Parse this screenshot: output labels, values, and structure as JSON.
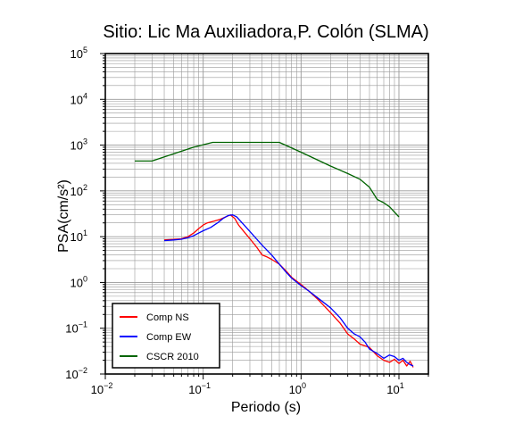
{
  "chart_data": {
    "type": "line",
    "title": "Sitio: Lic Ma Auxiliadora,P. Colón (SLMA)",
    "xlabel": "Periodo (s)",
    "ylabel": "PSA(cm/s²)",
    "xscale": "log",
    "yscale": "log",
    "xlim": [
      0.01,
      20
    ],
    "ylim": [
      0.01,
      100000
    ],
    "grid": true,
    "legend_position": "bottom-left",
    "x_ticks": [
      {
        "value": 0.01,
        "base": "10",
        "exp": "−2"
      },
      {
        "value": 0.1,
        "base": "10",
        "exp": "−1"
      },
      {
        "value": 1,
        "base": "10",
        "exp": "0"
      },
      {
        "value": 10,
        "base": "10",
        "exp": "1"
      }
    ],
    "y_ticks": [
      {
        "value": 0.01,
        "base": "10",
        "exp": "−2"
      },
      {
        "value": 0.1,
        "base": "10",
        "exp": "−1"
      },
      {
        "value": 1,
        "base": "10",
        "exp": "0"
      },
      {
        "value": 10,
        "base": "10",
        "exp": "1"
      },
      {
        "value": 100,
        "base": "10",
        "exp": "2"
      },
      {
        "value": 1000,
        "base": "10",
        "exp": "3"
      },
      {
        "value": 10000,
        "base": "10",
        "exp": "4"
      },
      {
        "value": 100000,
        "base": "10",
        "exp": "5"
      }
    ],
    "series": [
      {
        "name": "Comp NS",
        "color": "#ff0000",
        "points": [
          [
            0.04,
            8.5
          ],
          [
            0.05,
            8.7
          ],
          [
            0.06,
            9.0
          ],
          [
            0.07,
            10
          ],
          [
            0.08,
            12
          ],
          [
            0.09,
            15
          ],
          [
            0.1,
            18
          ],
          [
            0.11,
            20
          ],
          [
            0.13,
            22
          ],
          [
            0.15,
            24
          ],
          [
            0.17,
            27
          ],
          [
            0.19,
            30
          ],
          [
            0.21,
            25
          ],
          [
            0.23,
            18
          ],
          [
            0.26,
            13
          ],
          [
            0.3,
            9
          ],
          [
            0.35,
            6
          ],
          [
            0.4,
            4
          ],
          [
            0.45,
            3.6
          ],
          [
            0.5,
            3.2
          ],
          [
            0.6,
            2.5
          ],
          [
            0.7,
            1.8
          ],
          [
            0.8,
            1.3
          ],
          [
            1.0,
            0.9
          ],
          [
            1.2,
            0.65
          ],
          [
            1.5,
            0.42
          ],
          [
            2.0,
            0.22
          ],
          [
            2.5,
            0.13
          ],
          [
            3.0,
            0.075
          ],
          [
            3.5,
            0.058
          ],
          [
            4.0,
            0.045
          ],
          [
            5.0,
            0.038
          ],
          [
            6.0,
            0.025
          ],
          [
            7.0,
            0.02
          ],
          [
            8.0,
            0.018
          ],
          [
            9.0,
            0.021
          ],
          [
            10.0,
            0.017
          ],
          [
            11.0,
            0.02
          ],
          [
            12.0,
            0.015
          ],
          [
            13.0,
            0.019
          ],
          [
            14.0,
            0.014
          ]
        ]
      },
      {
        "name": "Comp EW",
        "color": "#0000ff",
        "points": [
          [
            0.04,
            8.2
          ],
          [
            0.05,
            8.5
          ],
          [
            0.06,
            8.8
          ],
          [
            0.07,
            9.5
          ],
          [
            0.08,
            10.5
          ],
          [
            0.09,
            12
          ],
          [
            0.1,
            13.5
          ],
          [
            0.12,
            16
          ],
          [
            0.14,
            20
          ],
          [
            0.16,
            25
          ],
          [
            0.18,
            29
          ],
          [
            0.2,
            30
          ],
          [
            0.22,
            27
          ],
          [
            0.25,
            20
          ],
          [
            0.3,
            13
          ],
          [
            0.35,
            9
          ],
          [
            0.4,
            6.5
          ],
          [
            0.5,
            4
          ],
          [
            0.6,
            2.5
          ],
          [
            0.7,
            1.7
          ],
          [
            0.8,
            1.25
          ],
          [
            1.0,
            0.85
          ],
          [
            1.2,
            0.65
          ],
          [
            1.5,
            0.45
          ],
          [
            2.0,
            0.28
          ],
          [
            2.5,
            0.17
          ],
          [
            3.0,
            0.1
          ],
          [
            3.5,
            0.075
          ],
          [
            4.0,
            0.065
          ],
          [
            4.5,
            0.05
          ],
          [
            5.0,
            0.035
          ],
          [
            6.0,
            0.028
          ],
          [
            7.0,
            0.022
          ],
          [
            8.0,
            0.026
          ],
          [
            9.0,
            0.024
          ],
          [
            10.0,
            0.02
          ],
          [
            11.0,
            0.022
          ],
          [
            12.0,
            0.018
          ],
          [
            13.0,
            0.016
          ],
          [
            14.0,
            0.015
          ]
        ]
      },
      {
        "name": "CSCR 2010",
        "color": "#006400",
        "points": [
          [
            0.02,
            450
          ],
          [
            0.03,
            450
          ],
          [
            0.05,
            650
          ],
          [
            0.08,
            900
          ],
          [
            0.125,
            1150
          ],
          [
            0.2,
            1150
          ],
          [
            0.4,
            1150
          ],
          [
            0.6,
            1150
          ],
          [
            1.0,
            700
          ],
          [
            2.0,
            350
          ],
          [
            3.0,
            240
          ],
          [
            4.0,
            180
          ],
          [
            5.0,
            120
          ],
          [
            6.0,
            65
          ],
          [
            7.0,
            55
          ],
          [
            8.0,
            45
          ],
          [
            10.0,
            27
          ]
        ]
      }
    ]
  }
}
